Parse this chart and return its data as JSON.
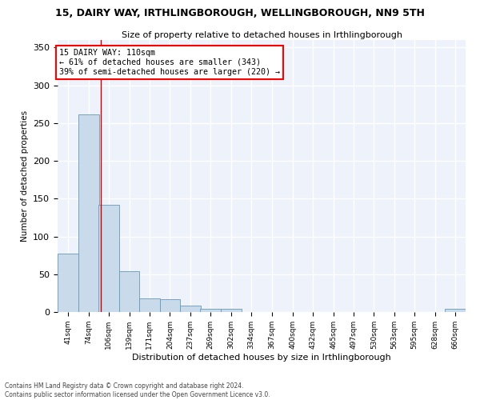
{
  "title": "15, DAIRY WAY, IRTHLINGBOROUGH, WELLINGBOROUGH, NN9 5TH",
  "subtitle": "Size of property relative to detached houses in Irthlingborough",
  "xlabel": "Distribution of detached houses by size in Irthlingborough",
  "ylabel": "Number of detached properties",
  "footer_line1": "Contains HM Land Registry data © Crown copyright and database right 2024.",
  "footer_line2": "Contains public sector information licensed under the Open Government Licence v3.0.",
  "annotation_line1": "15 DAIRY WAY: 110sqm",
  "annotation_line2": "← 61% of detached houses are smaller (343)",
  "annotation_line3": "39% of semi-detached houses are larger (220) →",
  "property_size": 110,
  "bar_color": "#c9daea",
  "bar_edge_color": "#6699bb",
  "marker_color": "#cc0000",
  "background_color": "#eef2fa",
  "grid_color": "#ffffff",
  "bins": [
    41,
    74,
    106,
    139,
    171,
    204,
    237,
    269,
    302,
    334,
    367,
    400,
    432,
    465,
    497,
    530,
    563,
    595,
    628,
    660,
    693
  ],
  "heights": [
    77,
    261,
    142,
    54,
    18,
    17,
    9,
    4,
    4,
    0,
    0,
    0,
    0,
    0,
    0,
    0,
    0,
    0,
    0,
    4
  ],
  "ylim": [
    0,
    360
  ],
  "yticks": [
    0,
    50,
    100,
    150,
    200,
    250,
    300,
    350
  ]
}
